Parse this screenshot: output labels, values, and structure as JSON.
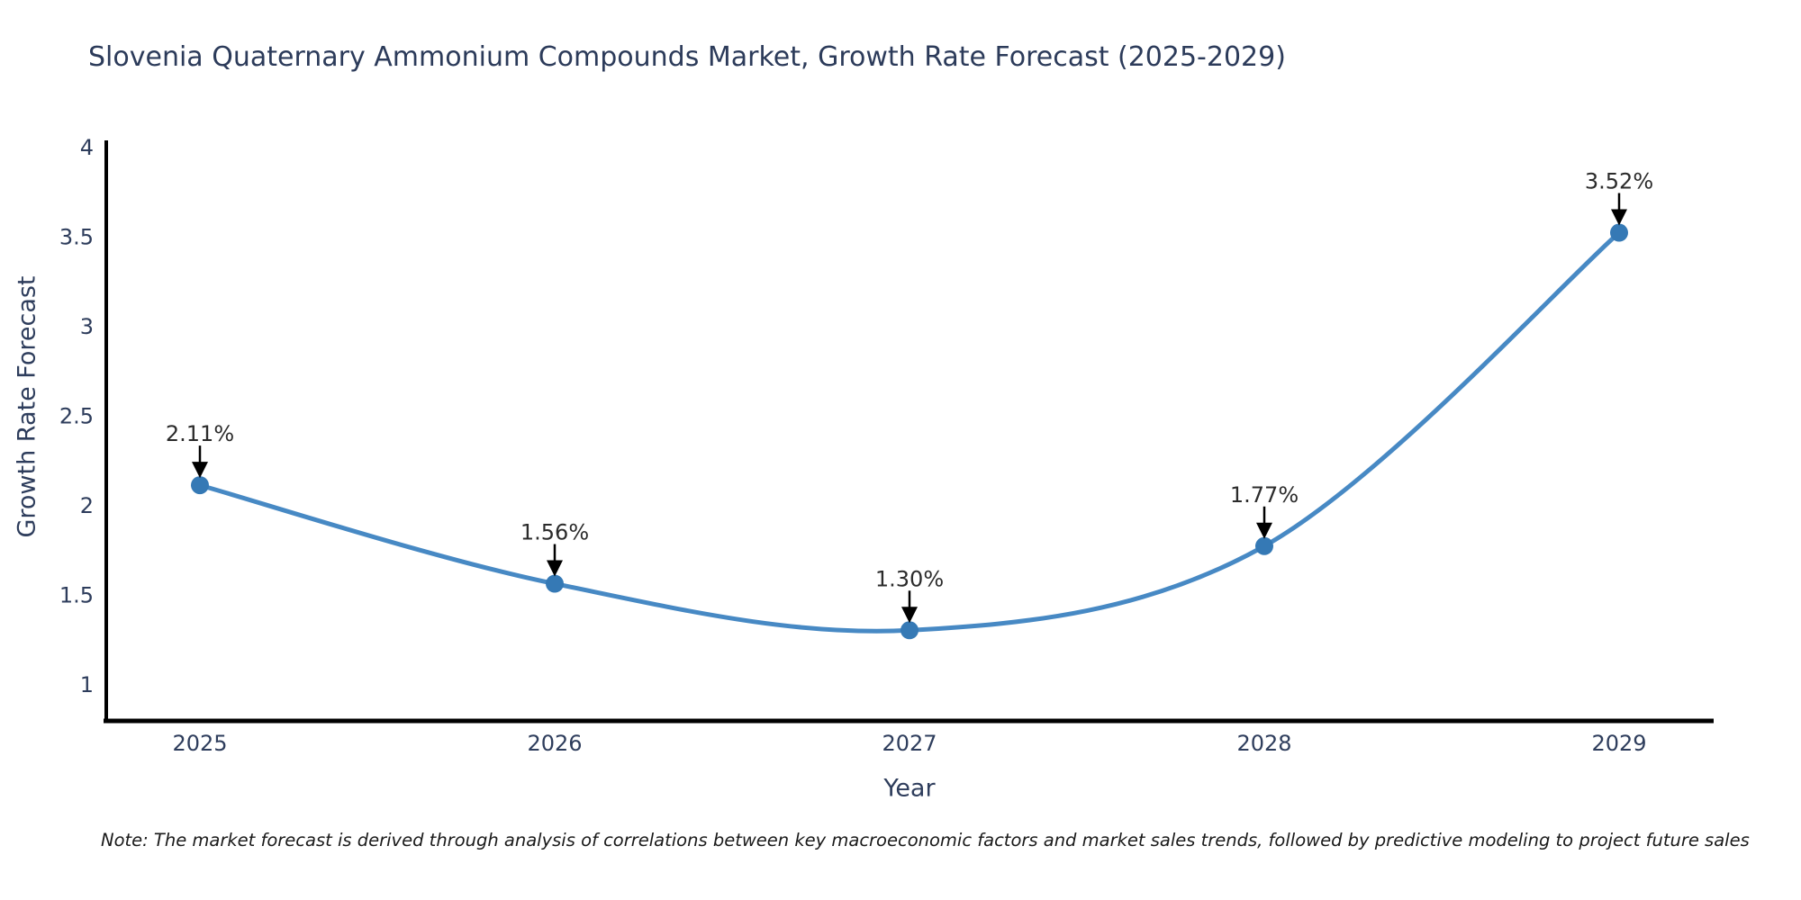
{
  "chart_data": {
    "type": "line",
    "title": "Slovenia Quaternary Ammonium Compounds Market, Growth Rate Forecast (2025-2029)",
    "xlabel": "Year",
    "ylabel": "Growth Rate Forecast",
    "x": [
      2025,
      2026,
      2027,
      2028,
      2029
    ],
    "values": [
      2.11,
      1.56,
      1.3,
      1.77,
      3.52
    ],
    "point_labels": [
      "2.11%",
      "1.56%",
      "1.30%",
      "1.77%",
      "3.52%"
    ],
    "yticks": [
      "1",
      "1.5",
      "2",
      "2.5",
      "3",
      "3.5",
      "4"
    ],
    "ytick_values": [
      1,
      1.5,
      2,
      2.5,
      3,
      3.5,
      4
    ],
    "ylim": [
      0.79,
      4.03
    ],
    "grid": false,
    "legend": null,
    "line_color": "#4789c4",
    "marker_color": "#3579b5",
    "axis_color": "#000000",
    "arrow_color": "#000000",
    "tick_text_color": "#2e3d5c",
    "annotation_text_color": "#2b2b2b"
  },
  "note": {
    "text": "Note: The market forecast is derived through analysis of correlations between key macroeconomic factors and market sales trends, followed by predictive modeling to project future sales"
  }
}
